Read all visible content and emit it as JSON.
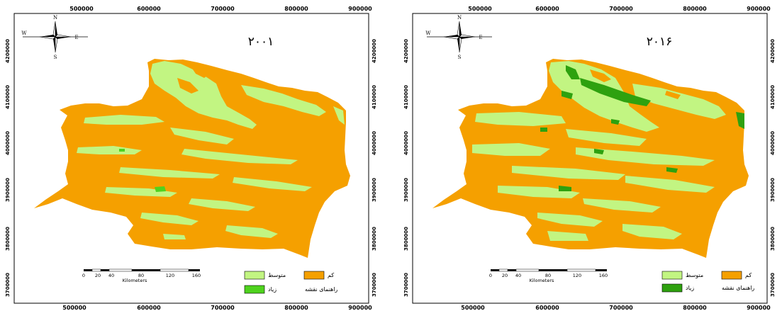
{
  "maps": [
    {
      "year_label": "۲۰۰۱",
      "x_ticks": [
        "500000",
        "600000",
        "700000",
        "800000",
        "900000"
      ],
      "y_ticks": [
        "4200000",
        "4100000",
        "4000000",
        "3900000",
        "3800000",
        "3700000"
      ],
      "compass": {
        "n": "N",
        "s": "S",
        "e": "E",
        "w": "W"
      },
      "scalebar": {
        "ticks": [
          "0",
          "20",
          "40",
          "80",
          "120",
          "160"
        ],
        "unit": "Kilometers"
      },
      "legend": {
        "title": "راهنمای نقشه",
        "items": [
          {
            "label": "کم",
            "color": "#f5a000"
          },
          {
            "label": "متوسط",
            "color": "#c2f582"
          },
          {
            "label": "زیاد",
            "color": "#4fd31e"
          }
        ]
      }
    },
    {
      "year_label": "۲۰۱۶",
      "x_ticks": [
        "500000",
        "600000",
        "700000",
        "800000",
        "900000"
      ],
      "y_ticks": [
        "4200000",
        "4100000",
        "4000000",
        "3900000",
        "3800000",
        "3700000"
      ],
      "compass": {
        "n": "N",
        "s": "S",
        "e": "E",
        "w": "W"
      },
      "scalebar": {
        "ticks": [
          "0",
          "20",
          "40",
          "80",
          "120",
          "160"
        ],
        "unit": "Kilometers"
      },
      "legend": {
        "title": "راهنمای نقشه",
        "items": [
          {
            "label": "کم",
            "color": "#f5a000"
          },
          {
            "label": "متوسط",
            "color": "#c2f582"
          },
          {
            "label": "زیاد",
            "color": "#2ea10f"
          }
        ]
      }
    }
  ]
}
